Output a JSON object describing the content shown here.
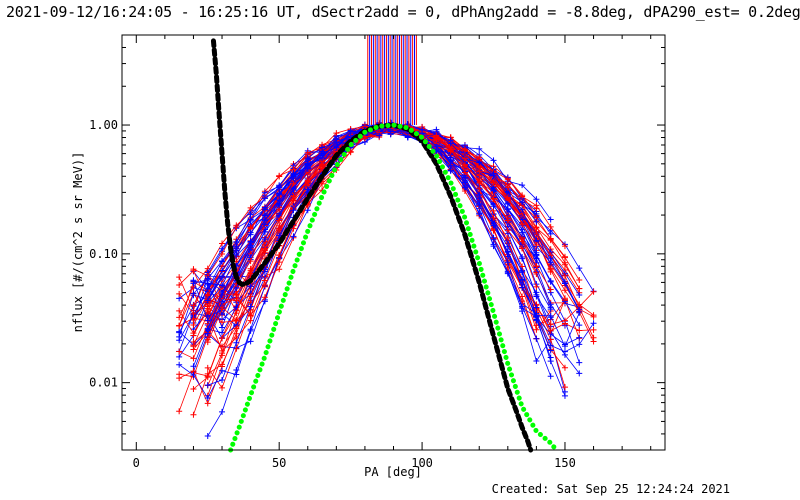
{
  "header": {
    "title": "2021-09-12/16:24:05 - 16:25:16 UT, dSectr2add = 0, dPhAng2add = -8.8deg, dPA290_est=  0.2deg"
  },
  "footer": {
    "created": "Created: Sat Sep 25 12:24:24 2021"
  },
  "colors": {
    "red": "#ff0000",
    "blue": "#0000ff",
    "black": "#000000",
    "green": "#00ff00"
  },
  "chart_data": {
    "type": "line",
    "title": "",
    "xlabel": "PA [deg]",
    "ylabel": "nflux [#/(cm^2 s sr MeV)]",
    "xlim": [
      -5,
      185
    ],
    "ylim": [
      0.003,
      5.0
    ],
    "yscale": "log",
    "grid": false,
    "x_ticks": [
      0,
      50,
      100,
      150
    ],
    "x_tick_labels": [
      "0",
      "50",
      "100",
      "150"
    ],
    "y_ticks": [
      0.01,
      0.1,
      1.0
    ],
    "y_tick_labels": [
      "0.01",
      "0.10",
      "1.00"
    ],
    "series": [
      {
        "color": "black",
        "style": "thick-dashed",
        "x": [
          27,
          28,
          29,
          30,
          31,
          32,
          33,
          34,
          35,
          36,
          37,
          38,
          40,
          42,
          45,
          50,
          55,
          60,
          65,
          70,
          75,
          80,
          85,
          90,
          95,
          100,
          105,
          110,
          115,
          120,
          125,
          130,
          133,
          135,
          137,
          138
        ],
        "y": [
          4.5,
          2.5,
          1.2,
          0.6,
          0.3,
          0.17,
          0.11,
          0.08,
          0.066,
          0.06,
          0.058,
          0.058,
          0.062,
          0.07,
          0.085,
          0.12,
          0.18,
          0.27,
          0.4,
          0.58,
          0.75,
          0.9,
          0.98,
          1.0,
          0.93,
          0.75,
          0.5,
          0.28,
          0.14,
          0.06,
          0.023,
          0.009,
          0.006,
          0.0045,
          0.0035,
          0.003
        ]
      },
      {
        "color": "green",
        "style": "thick-dotted",
        "x": [
          33,
          36,
          40,
          45,
          50,
          55,
          60,
          65,
          70,
          75,
          80,
          85,
          90,
          95,
          100,
          105,
          110,
          115,
          120,
          125,
          130,
          135,
          140,
          145,
          147
        ],
        "y": [
          0.003,
          0.0045,
          0.008,
          0.016,
          0.035,
          0.075,
          0.15,
          0.28,
          0.48,
          0.7,
          0.88,
          0.98,
          1.0,
          0.95,
          0.8,
          0.58,
          0.36,
          0.19,
          0.085,
          0.035,
          0.014,
          0.0065,
          0.0042,
          0.0034,
          0.003
        ]
      }
    ],
    "measurement_traces": {
      "note": "many thin red and blue connected '+' markers, roughly 35 of each colour",
      "red_count": 35,
      "blue_count": 35
    },
    "top_markers": {
      "x_range": [
        81,
        98
      ],
      "colors": [
        "red",
        "blue"
      ]
    }
  }
}
